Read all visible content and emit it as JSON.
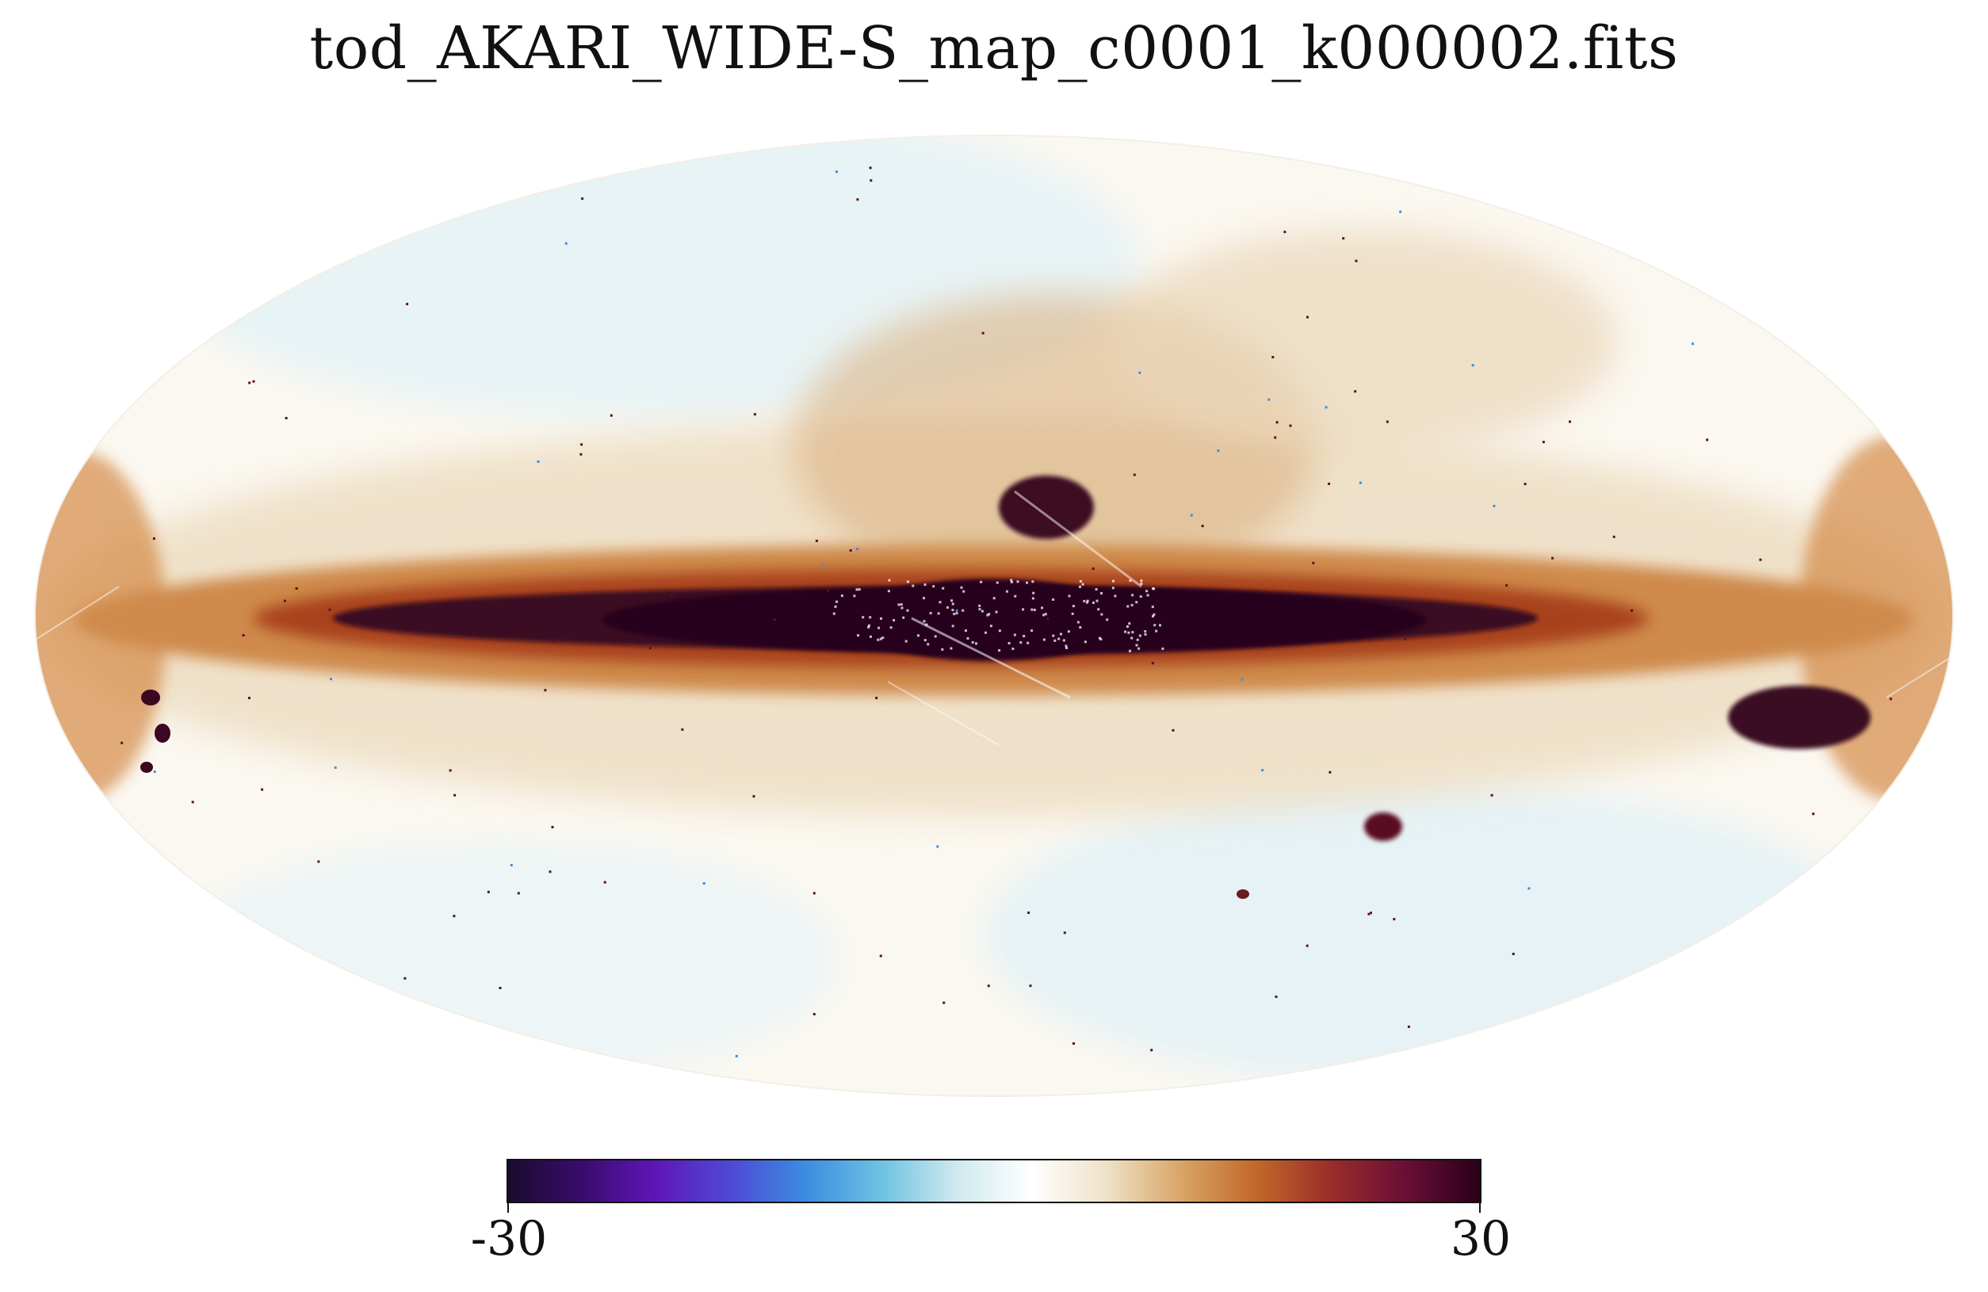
{
  "title": "tod_AKARI_WIDE-S_map_c0001_k000002.fits",
  "map": {
    "projection": "mollweide",
    "background_color": "#ffffff",
    "colorscale": [
      "#1a0b2e",
      "#3a0b6e",
      "#5e17b8",
      "#4f4ad6",
      "#3b8ee0",
      "#6ec2e2",
      "#cfe9ef",
      "#ffffff",
      "#eee2c8",
      "#d9a566",
      "#c2682a",
      "#9a2d2a",
      "#6a0e36",
      "#2a0019"
    ]
  },
  "colorbar": {
    "min_label": "-30",
    "max_label": "30",
    "min": -30,
    "max": 30
  }
}
